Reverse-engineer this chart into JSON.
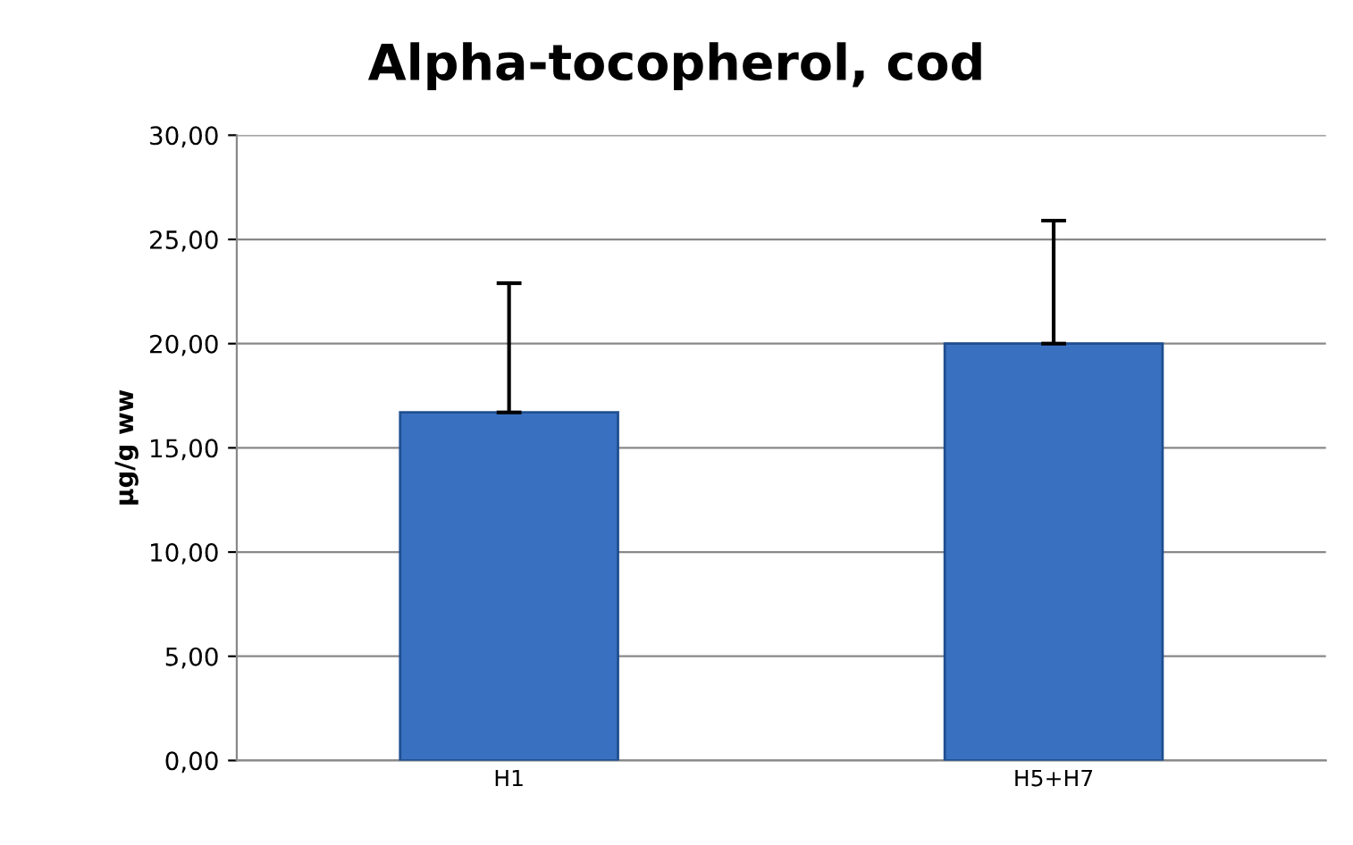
{
  "chart_data": {
    "type": "bar",
    "title": "Alpha-tocopherol, cod",
    "ylabel": "µg/g ww",
    "categories": [
      "H1",
      "H5+H7"
    ],
    "values": [
      16.7,
      20.0
    ],
    "errors": [
      [
        16.7,
        22.9
      ],
      [
        20.0,
        25.9
      ]
    ],
    "color": "#3a70c0",
    "ylim": [
      0,
      30
    ],
    "yticks": [
      {
        "value": 0,
        "label": "0,00"
      },
      {
        "value": 5,
        "label": "5,00"
      },
      {
        "value": 10,
        "label": "10,00"
      },
      {
        "value": 15,
        "label": "15,00"
      },
      {
        "value": 20,
        "label": "20,00"
      },
      {
        "value": 25,
        "label": "25,00"
      },
      {
        "value": 30,
        "label": "30,00"
      }
    ],
    "grid": "y"
  }
}
